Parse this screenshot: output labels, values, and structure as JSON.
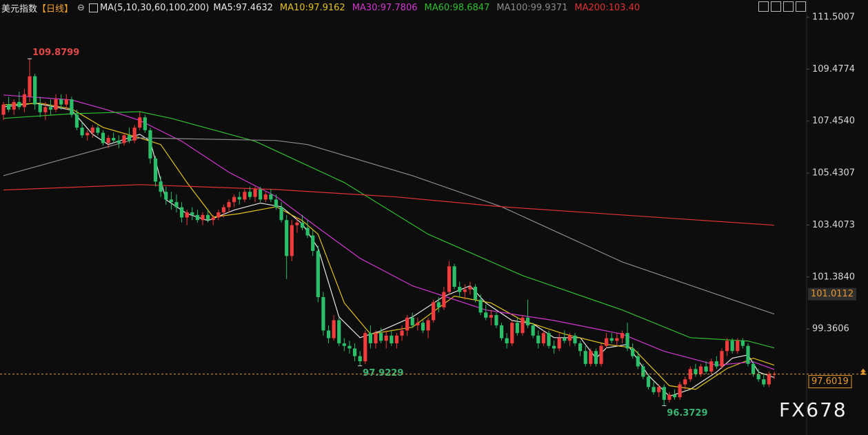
{
  "chart_data": {
    "type": "candlestick",
    "title": "美元指数",
    "period": "【日线】",
    "indicator": "MA(5,10,30,60,100,200)",
    "up_color": "#f03c3c",
    "down_color": "#2bbf6a",
    "ylim": [
      95.23,
      112.17
    ],
    "yticks": [
      111.5007,
      109.4774,
      {
        "value": 107.454,
        "label": "107.4540"
      },
      105.4307,
      103.4073,
      {
        "value": 101.384,
        "label": "101.3840"
      },
      99.3606
    ],
    "ohlc": [
      [
        107.7,
        108.2,
        107.5,
        108.1
      ],
      [
        108.1,
        108.4,
        107.8,
        107.9
      ],
      [
        107.9,
        108.3,
        107.7,
        108.2
      ],
      [
        108.2,
        108.6,
        107.9,
        108.0
      ],
      [
        108.0,
        108.7,
        107.8,
        108.5
      ],
      [
        108.4,
        109.8799,
        108.2,
        109.2
      ],
      [
        109.2,
        109.3,
        107.9,
        108.1
      ],
      [
        108.1,
        108.4,
        107.6,
        107.8
      ],
      [
        107.8,
        108.2,
        107.5,
        108.0
      ],
      [
        108.0,
        108.3,
        107.7,
        107.9
      ],
      [
        107.9,
        108.5,
        107.8,
        108.3
      ],
      [
        108.3,
        108.5,
        107.9,
        108.1
      ],
      [
        108.1,
        108.5,
        107.9,
        108.3
      ],
      [
        108.3,
        108.4,
        107.6,
        107.7
      ],
      [
        107.7,
        107.9,
        107.1,
        107.2
      ],
      [
        107.2,
        107.4,
        106.8,
        106.9
      ],
      [
        106.9,
        107.1,
        106.7,
        107.0
      ],
      [
        107.0,
        107.3,
        106.8,
        107.2
      ],
      [
        107.2,
        107.3,
        106.9,
        107.0
      ],
      [
        107.0,
        107.1,
        106.5,
        106.6
      ],
      [
        106.6,
        106.9,
        106.4,
        106.8
      ],
      [
        106.8,
        107.0,
        106.6,
        106.7
      ],
      [
        106.7,
        106.9,
        106.4,
        106.6
      ],
      [
        106.6,
        107.0,
        106.5,
        106.9
      ],
      [
        106.9,
        107.2,
        106.6,
        106.7
      ],
      [
        106.7,
        107.3,
        106.6,
        107.2
      ],
      [
        107.2,
        107.8,
        107.1,
        107.6
      ],
      [
        107.6,
        107.7,
        107.0,
        107.1
      ],
      [
        107.1,
        107.2,
        105.8,
        106.0
      ],
      [
        106.0,
        106.1,
        104.9,
        105.1
      ],
      [
        105.1,
        105.3,
        104.5,
        104.7
      ],
      [
        104.7,
        104.9,
        104.2,
        104.4
      ],
      [
        104.4,
        104.7,
        104.0,
        104.3
      ],
      [
        104.3,
        104.6,
        103.9,
        104.1
      ],
      [
        104.1,
        104.3,
        103.5,
        103.7
      ],
      [
        103.7,
        104.0,
        103.4,
        103.9
      ],
      [
        103.9,
        104.1,
        103.6,
        103.8
      ],
      [
        103.8,
        104.0,
        103.5,
        103.6
      ],
      [
        103.6,
        103.9,
        103.4,
        103.8
      ],
      [
        103.8,
        104.0,
        103.5,
        103.6
      ],
      [
        103.6,
        103.8,
        103.4,
        103.7
      ],
      [
        103.7,
        104.0,
        103.6,
        103.9
      ],
      [
        103.9,
        104.2,
        103.7,
        104.1
      ],
      [
        104.1,
        104.4,
        103.9,
        104.3
      ],
      [
        104.3,
        104.6,
        104.1,
        104.5
      ],
      [
        104.5,
        104.7,
        104.2,
        104.4
      ],
      [
        104.4,
        104.8,
        104.3,
        104.7
      ],
      [
        104.7,
        104.9,
        104.4,
        104.5
      ],
      [
        104.5,
        104.9,
        104.3,
        104.8
      ],
      [
        104.8,
        104.9,
        104.3,
        104.4
      ],
      [
        104.4,
        104.7,
        104.3,
        104.6
      ],
      [
        104.6,
        104.8,
        104.3,
        104.4
      ],
      [
        104.4,
        104.6,
        104.0,
        104.1
      ],
      [
        104.1,
        104.3,
        103.5,
        103.6
      ],
      [
        103.6,
        103.8,
        101.3,
        102.2
      ],
      [
        102.2,
        103.6,
        102.0,
        103.4
      ],
      [
        103.4,
        103.7,
        103.1,
        103.5
      ],
      [
        103.5,
        103.8,
        103.2,
        103.3
      ],
      [
        103.3,
        103.6,
        102.9,
        103.0
      ],
      [
        103.0,
        103.2,
        102.2,
        102.4
      ],
      [
        102.4,
        102.6,
        100.4,
        100.6
      ],
      [
        100.6,
        100.8,
        99.1,
        99.3
      ],
      [
        99.3,
        99.5,
        98.8,
        99.0
      ],
      [
        99.0,
        99.9,
        98.9,
        99.7
      ],
      [
        99.7,
        99.8,
        98.7,
        98.8
      ],
      [
        98.8,
        99.0,
        98.5,
        98.7
      ],
      [
        98.7,
        98.9,
        98.4,
        98.6
      ],
      [
        98.6,
        98.8,
        98.1,
        98.3
      ],
      [
        98.3,
        98.5,
        97.9229,
        98.1
      ],
      [
        98.1,
        99.3,
        98.0,
        99.2
      ],
      [
        99.2,
        99.5,
        98.6,
        98.8
      ],
      [
        98.8,
        99.3,
        98.6,
        99.2
      ],
      [
        99.2,
        99.4,
        98.8,
        98.9
      ],
      [
        98.9,
        99.3,
        98.6,
        99.1
      ],
      [
        99.1,
        99.3,
        98.7,
        98.8
      ],
      [
        98.8,
        99.2,
        98.6,
        99.1
      ],
      [
        99.1,
        99.5,
        98.9,
        99.3
      ],
      [
        99.3,
        99.9,
        99.1,
        99.8
      ],
      [
        99.8,
        100.0,
        99.4,
        99.5
      ],
      [
        99.5,
        99.8,
        99.3,
        99.6
      ],
      [
        99.6,
        99.7,
        99.2,
        99.3
      ],
      [
        99.3,
        99.8,
        99.0,
        99.7
      ],
      [
        99.7,
        100.5,
        99.6,
        100.4
      ],
      [
        100.4,
        100.6,
        100.0,
        100.2
      ],
      [
        100.2,
        101.0,
        100.1,
        100.8
      ],
      [
        100.8,
        102.0,
        100.7,
        101.8
      ],
      [
        101.8,
        101.9,
        100.9,
        101.0
      ],
      [
        101.0,
        101.2,
        100.6,
        100.8
      ],
      [
        100.8,
        101.1,
        100.5,
        100.9
      ],
      [
        100.9,
        101.2,
        100.7,
        101.0
      ],
      [
        101.0,
        101.1,
        100.4,
        100.5
      ],
      [
        100.5,
        100.7,
        99.9,
        100.0
      ],
      [
        100.0,
        100.3,
        99.7,
        99.8
      ],
      [
        99.8,
        100.1,
        99.5,
        99.9
      ],
      [
        99.9,
        100.0,
        99.4,
        99.5
      ],
      [
        99.5,
        99.6,
        98.9,
        99.0
      ],
      [
        99.0,
        99.2,
        98.6,
        98.8
      ],
      [
        98.8,
        99.7,
        98.7,
        99.6
      ],
      [
        99.6,
        99.8,
        99.1,
        99.2
      ],
      [
        99.2,
        99.9,
        99.1,
        99.8
      ],
      [
        99.8,
        100.5,
        99.4,
        99.5
      ],
      [
        99.5,
        99.6,
        99.0,
        99.1
      ],
      [
        99.1,
        99.3,
        98.6,
        98.8
      ],
      [
        98.8,
        99.3,
        98.7,
        99.2
      ],
      [
        99.2,
        99.3,
        98.6,
        98.7
      ],
      [
        98.7,
        98.9,
        98.4,
        98.6
      ],
      [
        98.6,
        99.2,
        98.5,
        99.0
      ],
      [
        99.0,
        99.3,
        98.8,
        98.9
      ],
      [
        98.9,
        99.2,
        98.7,
        99.1
      ],
      [
        99.1,
        99.2,
        98.7,
        98.8
      ],
      [
        98.8,
        98.9,
        98.3,
        98.5
      ],
      [
        98.5,
        98.7,
        97.9,
        98.0
      ],
      [
        98.0,
        98.6,
        97.9,
        98.5
      ],
      [
        98.5,
        98.6,
        97.9,
        98.0
      ],
      [
        98.0,
        98.8,
        97.9,
        98.7
      ],
      [
        98.7,
        99.2,
        98.6,
        99.0
      ],
      [
        99.0,
        99.2,
        98.8,
        98.9
      ],
      [
        98.9,
        99.2,
        98.7,
        99.0
      ],
      [
        99.0,
        99.3,
        98.8,
        99.2
      ],
      [
        99.2,
        99.6,
        98.5,
        98.6
      ],
      [
        98.6,
        98.8,
        98.2,
        98.3
      ],
      [
        98.3,
        98.5,
        97.8,
        97.9
      ],
      [
        97.9,
        98.0,
        97.4,
        97.5
      ],
      [
        97.5,
        97.6,
        97.0,
        97.1
      ],
      [
        97.1,
        97.3,
        96.8,
        96.9
      ],
      [
        96.9,
        97.2,
        96.7,
        97.1
      ],
      [
        97.1,
        97.2,
        96.3729,
        96.6
      ],
      [
        96.6,
        96.9,
        96.5,
        96.8
      ],
      [
        96.8,
        97.0,
        96.6,
        96.7
      ],
      [
        96.7,
        97.3,
        96.6,
        97.2
      ],
      [
        97.2,
        97.5,
        97.0,
        97.4
      ],
      [
        97.4,
        97.9,
        97.3,
        97.8
      ],
      [
        97.8,
        98.0,
        97.5,
        97.6
      ],
      [
        97.6,
        98.0,
        97.5,
        97.9
      ],
      [
        97.9,
        98.1,
        97.6,
        97.7
      ],
      [
        97.7,
        98.2,
        97.6,
        98.1
      ],
      [
        98.1,
        98.3,
        97.8,
        97.9
      ],
      [
        97.9,
        98.6,
        97.8,
        98.5
      ],
      [
        98.5,
        99.0,
        98.3,
        98.9
      ],
      [
        98.9,
        99.0,
        98.4,
        98.5
      ],
      [
        98.5,
        99.0,
        98.4,
        98.9
      ],
      [
        98.9,
        99.0,
        98.6,
        98.7
      ],
      [
        98.7,
        98.8,
        97.9,
        98.0
      ],
      [
        98.0,
        98.1,
        97.5,
        97.6
      ],
      [
        97.6,
        97.8,
        97.3,
        97.4
      ],
      [
        97.4,
        97.6,
        97.1,
        97.2
      ],
      [
        97.2,
        97.7,
        97.1,
        97.6
      ],
      [
        97.6,
        97.7,
        97.4,
        97.6019
      ]
    ],
    "series": [
      {
        "name": "MA5:97.4632",
        "color": "#e8e8e8",
        "x": [
          0,
          6,
          13,
          17,
          20,
          26,
          28,
          31,
          35,
          39,
          44,
          49,
          53,
          57,
          60,
          64,
          68,
          72,
          78,
          84,
          89,
          92,
          97,
          101,
          105,
          110,
          113,
          115,
          119,
          123,
          127,
          131,
          136,
          139,
          142,
          144,
          147
        ],
        "values": [
          108.01,
          108.15,
          107.88,
          106.94,
          106.54,
          106.94,
          106.67,
          104.39,
          103.85,
          103.58,
          103.99,
          104.26,
          104.12,
          103.45,
          102.51,
          99.83,
          99.02,
          99.29,
          99.83,
          100.63,
          101.04,
          100.37,
          99.69,
          99.56,
          99.02,
          99.02,
          98.22,
          98.62,
          98.76,
          97.55,
          96.74,
          97.01,
          97.68,
          98.22,
          98.35,
          97.68,
          97.47
        ]
      },
      {
        "name": "MA10:97.9162",
        "color": "#e3c21b",
        "x": [
          0,
          7,
          13,
          19,
          26,
          30,
          35,
          40,
          45,
          52,
          57,
          60,
          65,
          70,
          78,
          86,
          93,
          99,
          107,
          115,
          120,
          127,
          132,
          138,
          143,
          147
        ],
        "values": [
          108.09,
          108.15,
          107.93,
          107.21,
          106.8,
          106.54,
          105.06,
          103.72,
          103.85,
          104.12,
          103.58,
          103.05,
          100.37,
          99.16,
          99.43,
          100.64,
          100.37,
          99.69,
          99.16,
          98.76,
          98.62,
          97.15,
          97.01,
          97.82,
          98.22,
          97.95
        ]
      },
      {
        "name": "MA30:97.7806",
        "color": "#d238d2",
        "x": [
          0,
          13,
          20,
          26,
          34,
          43,
          52,
          60,
          68,
          78,
          92,
          105,
          118,
          126,
          136,
          143,
          147
        ],
        "values": [
          108.47,
          108.28,
          107.88,
          107.48,
          106.67,
          105.46,
          104.52,
          103.3,
          102.11,
          101.04,
          100.1,
          99.69,
          99.16,
          98.49,
          97.95,
          98.08,
          97.78
        ]
      },
      {
        "name": "MA60:98.6847",
        "color": "#2fbf2f",
        "x": [
          0,
          13,
          26,
          32,
          48,
          65,
          81,
          99,
          118,
          131,
          142,
          147
        ],
        "values": [
          107.56,
          107.74,
          107.82,
          107.56,
          106.67,
          105.06,
          103.05,
          101.44,
          100.1,
          99.02,
          98.89,
          98.62
        ]
      },
      {
        "name": "MA100:99.9371",
        "color": "#8c8c8c",
        "x": [
          0,
          26,
          52,
          58,
          78,
          95,
          118,
          147
        ],
        "values": [
          105.33,
          106.8,
          106.7,
          106.54,
          105.33,
          104.12,
          101.97,
          99.94
        ]
      },
      {
        "name": "MA200:103.40",
        "color": "#e03232",
        "x": [
          0,
          26,
          52,
          75,
          95,
          118,
          147
        ],
        "values": [
          104.77,
          104.98,
          104.79,
          104.5,
          104.12,
          103.8,
          103.4
        ]
      }
    ],
    "annotations": [
      {
        "x": 5,
        "value": 109.8799,
        "label": "109.8799"
      },
      {
        "x": 68,
        "value": 97.9229,
        "label": "97.9229"
      },
      {
        "x": 126,
        "value": 96.3729,
        "label": "96.3729"
      }
    ],
    "price_tags": [
      {
        "value": 101.0112,
        "label": "101.0112",
        "style": "box"
      },
      {
        "value": 97.6019,
        "label": "97.6019",
        "style": "current"
      }
    ],
    "watermark": "FX678"
  }
}
